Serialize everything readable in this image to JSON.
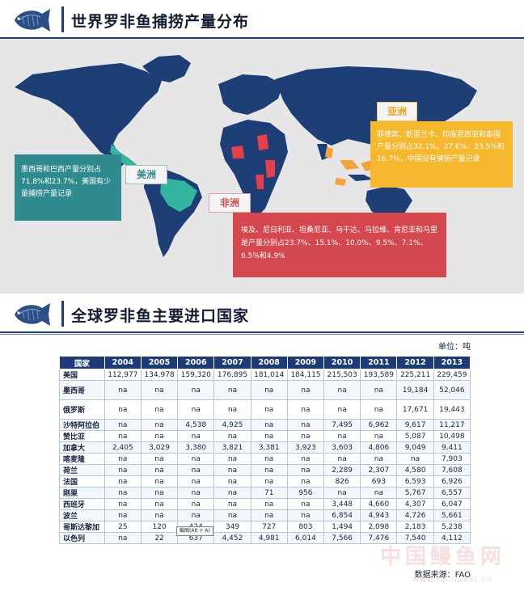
{
  "slide1": {
    "title": "世界罗非鱼捕捞产量分布",
    "america": {
      "label": "美洲",
      "text": "墨西哥和巴西产量分别占71.8%和23.7%，美国有少量捕捞产量记录"
    },
    "asia": {
      "label": "亚洲",
      "text": "菲律宾、斯里兰卡、印度尼西亚和泰国产量分别占32.1%、27.6%、23.5%和16.7%，中国没有捕捞产量记录"
    },
    "africa": {
      "label": "非洲",
      "text": "埃及、尼日利亚、坦桑尼亚、乌干达、马拉维、肯尼亚和马里是产量分别占23.7%、15.1%、10.0%、9.5%、7.1%、6.5%和4.9%"
    },
    "colors": {
      "map": "#1d3f76",
      "america": "#2f8a8e",
      "asia": "#f5b82e",
      "africa": "#d5474e",
      "highlight_asia": "#f2a33a",
      "highlight_africa": "#e5404a",
      "highlight_america": "#33b5a0"
    }
  },
  "slide2": {
    "title": "全球罗非鱼主要进口国家",
    "unit_label": "单位：吨",
    "source_label": "数据来源：FAO",
    "tooltip": "截图(Alt + A)",
    "watermark": "中国鳗鱼网",
    "watermark_url": "www.chinaeel.cn",
    "table": {
      "corner": "国家",
      "years": [
        "2004",
        "2005",
        "2006",
        "2007",
        "2008",
        "2009",
        "2010",
        "2011",
        "2012",
        "2013"
      ],
      "rows": [
        {
          "country": "美国",
          "values": [
            "112,977",
            "134,978",
            "159,320",
            "176,895",
            "181,014",
            "184,115",
            "215,503",
            "193,589",
            "225,211",
            "229,459"
          ]
        },
        {
          "country": "墨西哥",
          "values": [
            "na",
            "na",
            "na",
            "na",
            "na",
            "na",
            "na",
            "na",
            "19,184",
            "52,046"
          ]
        },
        {
          "country": "俄罗斯",
          "values": [
            "na",
            "na",
            "na",
            "na",
            "na",
            "na",
            "na",
            "na",
            "17,671",
            "19,443"
          ]
        },
        {
          "country": "沙特阿拉伯",
          "values": [
            "na",
            "na",
            "4,538",
            "4,925",
            "na",
            "na",
            "7,495",
            "6,962",
            "9,617",
            "11,217"
          ]
        },
        {
          "country": "赞比亚",
          "values": [
            "na",
            "na",
            "na",
            "na",
            "na",
            "na",
            "na",
            "na",
            "5,087",
            "10,498"
          ]
        },
        {
          "country": "加拿大",
          "values": [
            "2,405",
            "3,029",
            "3,380",
            "3,821",
            "3,381",
            "3,923",
            "3,603",
            "4,806",
            "9,049",
            "9,411"
          ]
        },
        {
          "country": "喀麦隆",
          "values": [
            "na",
            "na",
            "na",
            "na",
            "na",
            "na",
            "na",
            "na",
            "na",
            "7,903"
          ]
        },
        {
          "country": "荷兰",
          "values": [
            "na",
            "na",
            "na",
            "na",
            "na",
            "na",
            "2,289",
            "2,307",
            "4,580",
            "7,608"
          ]
        },
        {
          "country": "法国",
          "values": [
            "na",
            "na",
            "na",
            "na",
            "na",
            "na",
            "826",
            "693",
            "6,593",
            "6,926"
          ]
        },
        {
          "country": "刚果",
          "values": [
            "na",
            "na",
            "na",
            "na",
            "71",
            "956",
            "na",
            "na",
            "5,767",
            "6,557"
          ]
        },
        {
          "country": "西班牙",
          "values": [
            "na",
            "na",
            "na",
            "na",
            "na",
            "na",
            "3,448",
            "4,660",
            "4,307",
            "6,047"
          ]
        },
        {
          "country": "波兰",
          "values": [
            "na",
            "na",
            "na",
            "na",
            "na",
            "na",
            "6,854",
            "4,943",
            "4,726",
            "5,661"
          ]
        },
        {
          "country": "哥斯达黎加",
          "values": [
            "25",
            "120",
            "424",
            "349",
            "727",
            "803",
            "1,494",
            "2,098",
            "2,183",
            "5,238"
          ]
        },
        {
          "country": "以色列",
          "values": [
            "na",
            "22",
            "637",
            "4,452",
            "4,981",
            "6,014",
            "7,566",
            "7,476",
            "7,540",
            "4,112"
          ]
        }
      ]
    }
  }
}
